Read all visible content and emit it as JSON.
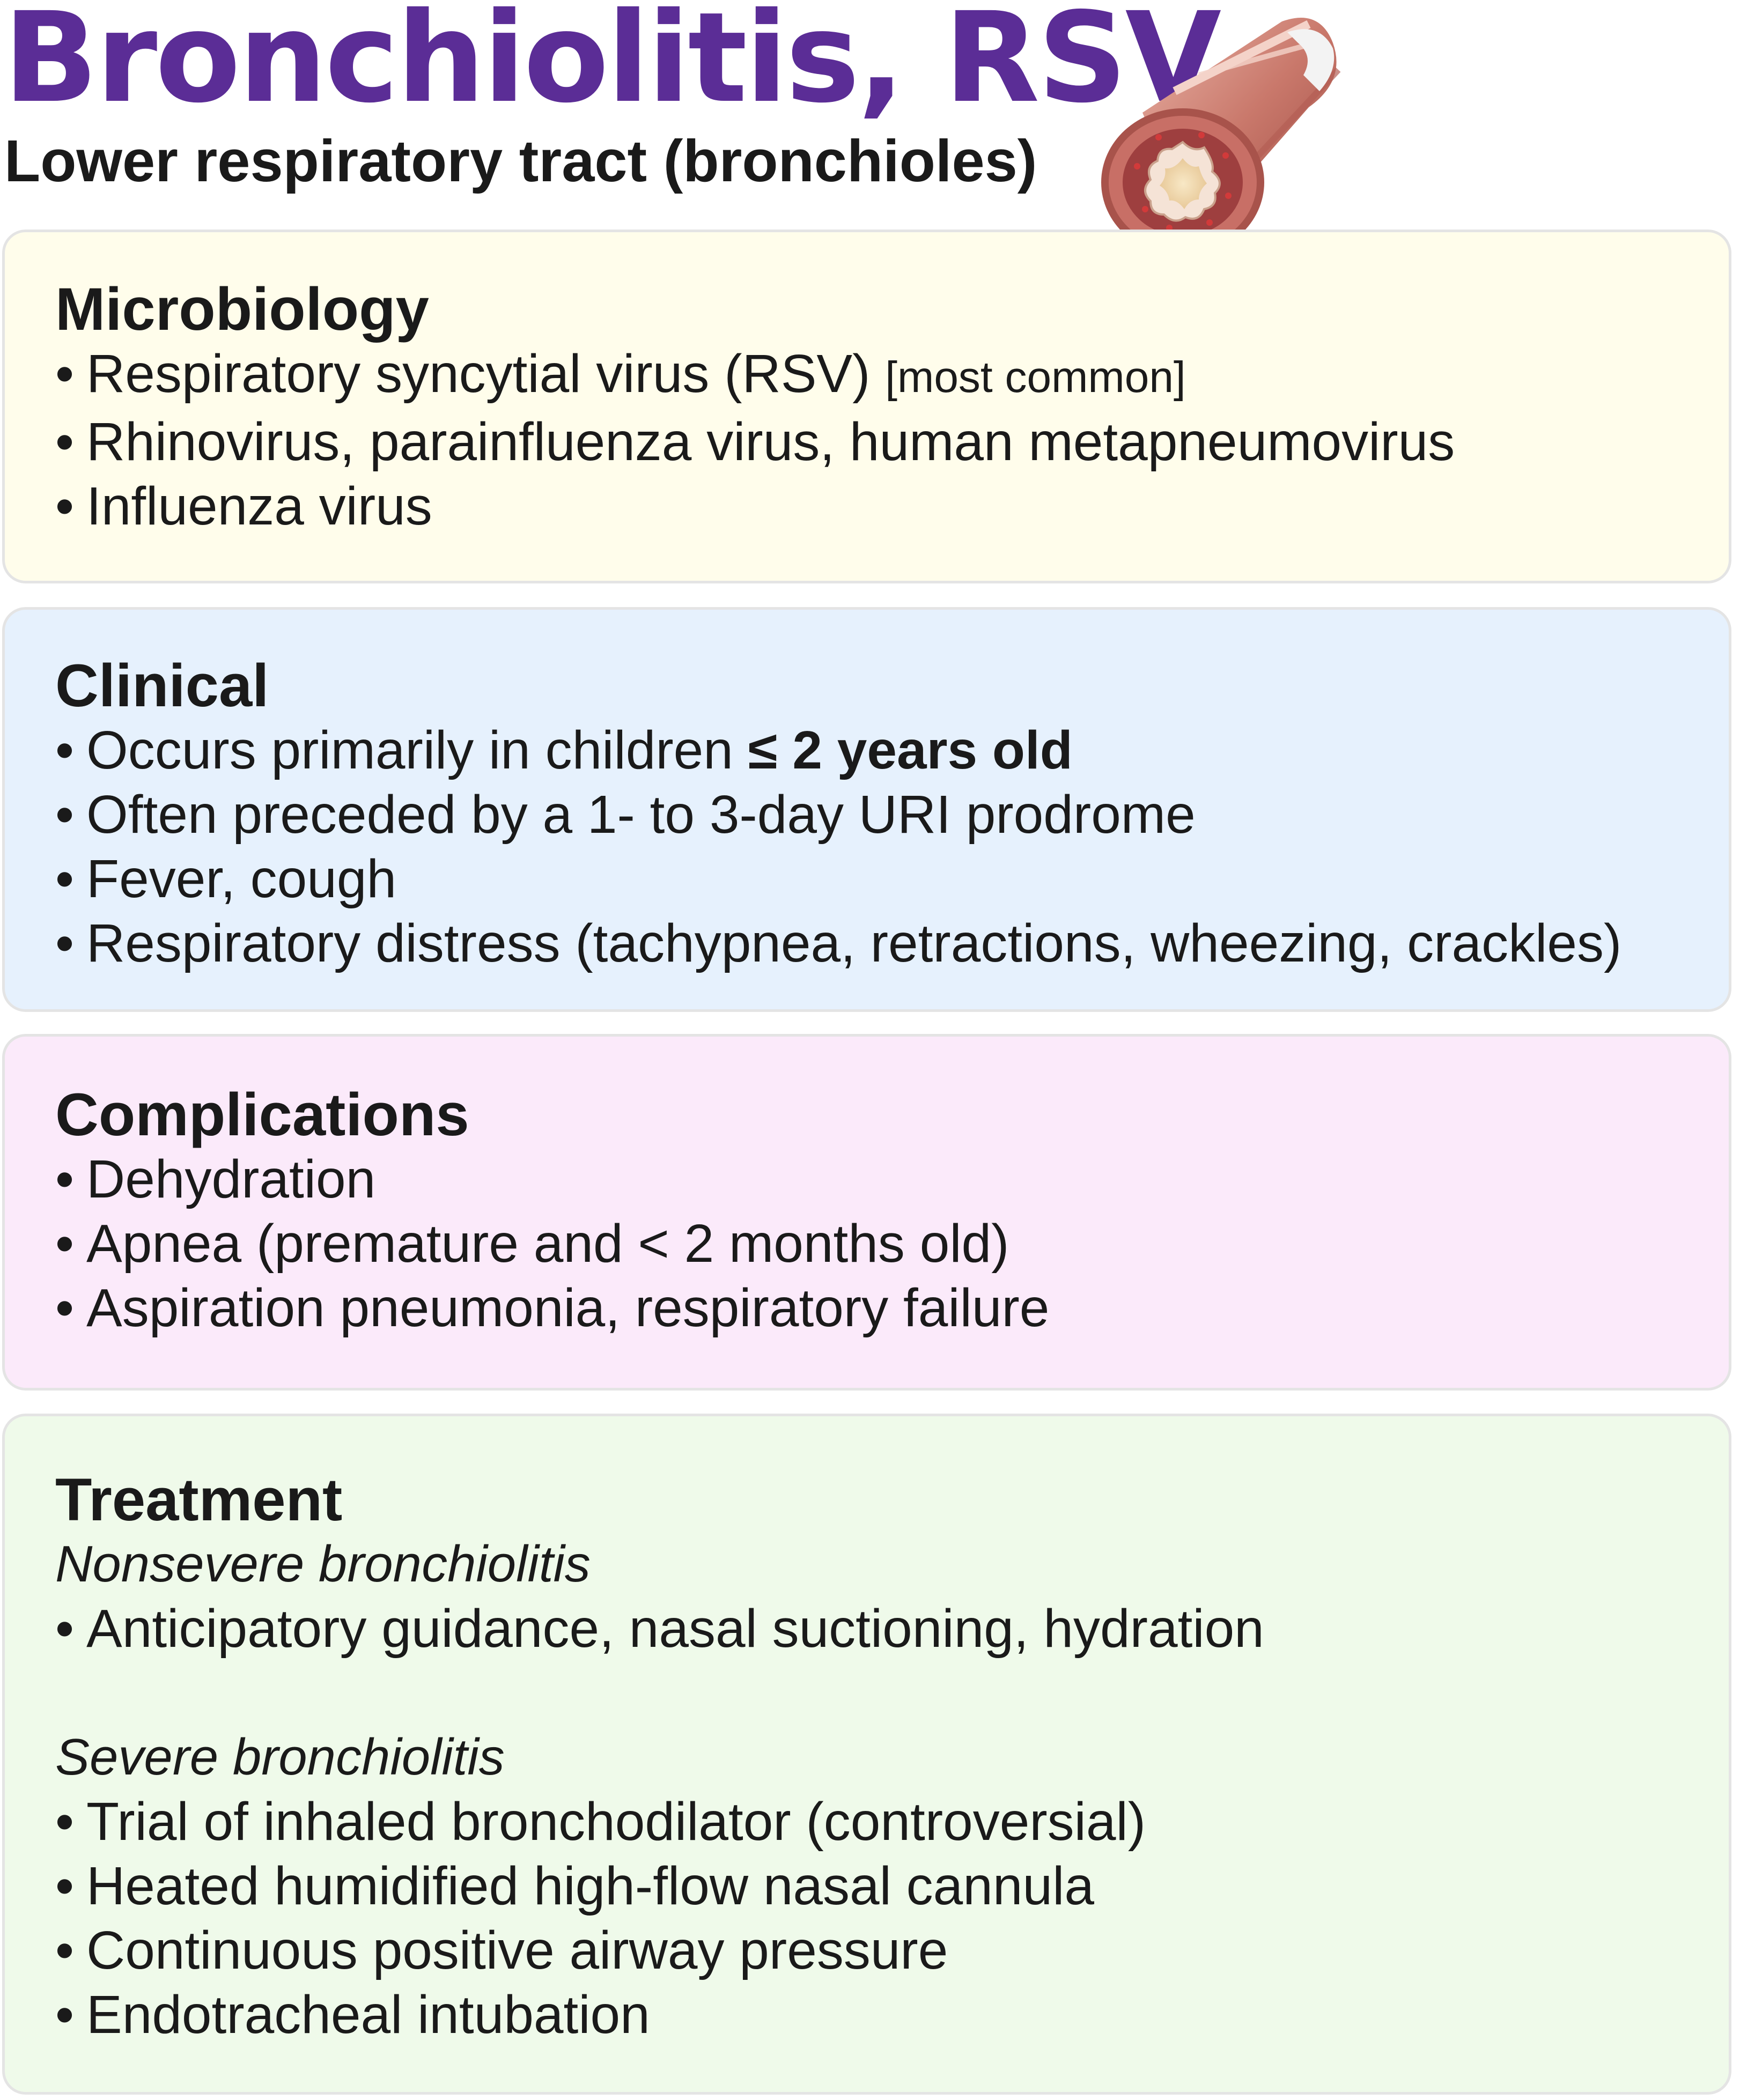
{
  "title": "Bronchiolitis, RSV",
  "subtitle": "Lower respiratory tract (bronchioles)",
  "colors": {
    "title": "#5b2d96",
    "microbiology_bg": "#fffdeb",
    "clinical_bg": "#e6f1fd",
    "complications_bg": "#fbeafa",
    "treatment_bg": "#effaea"
  },
  "illustration": {
    "icon": "bronchiole-cross-section-illustration"
  },
  "sections": {
    "microbiology": {
      "heading": "Microbiology",
      "items": [
        {
          "bullet": "•",
          "text": "Respiratory syncytial virus (RSV)",
          "note": "[most common]"
        },
        {
          "bullet": "•",
          "text": "Rhinovirus, parainfluenza virus, human metapneumovirus"
        },
        {
          "bullet": "•",
          "text": "Influenza virus"
        }
      ]
    },
    "clinical": {
      "heading": "Clinical",
      "items": [
        {
          "bullet": "•",
          "text": "Occurs primarily in children ",
          "bold": "≤ 2 years old"
        },
        {
          "bullet": "•",
          "text": "Often preceded by a 1- to 3-day URI prodrome"
        },
        {
          "bullet": "•",
          "text": "Fever, cough"
        },
        {
          "bullet": "•",
          "text": "Respiratory distress (tachypnea, retractions, wheezing, crackles)"
        }
      ]
    },
    "complications": {
      "heading": "Complications",
      "items": [
        {
          "bullet": "•",
          "text": "Dehydration"
        },
        {
          "bullet": "•",
          "text": "Apnea (premature and < 2 months old)"
        },
        {
          "bullet": "•",
          "text": "Aspiration pneumonia, respiratory failure"
        }
      ]
    },
    "treatment": {
      "heading": "Treatment",
      "nonsevere": {
        "subheading": "Nonsevere bronchiolitis",
        "items": [
          {
            "bullet": "•",
            "text": "Anticipatory guidance, nasal suctioning, hydration"
          }
        ]
      },
      "severe": {
        "subheading": "Severe bronchiolitis",
        "items": [
          {
            "bullet": "•",
            "text": "Trial of inhaled bronchodilator (controversial)"
          },
          {
            "bullet": "•",
            "text": "Heated humidified high-flow nasal cannula"
          },
          {
            "bullet": "•",
            "text": "Continuous positive airway pressure"
          },
          {
            "bullet": "•",
            "text": "Endotracheal intubation"
          }
        ]
      }
    }
  }
}
